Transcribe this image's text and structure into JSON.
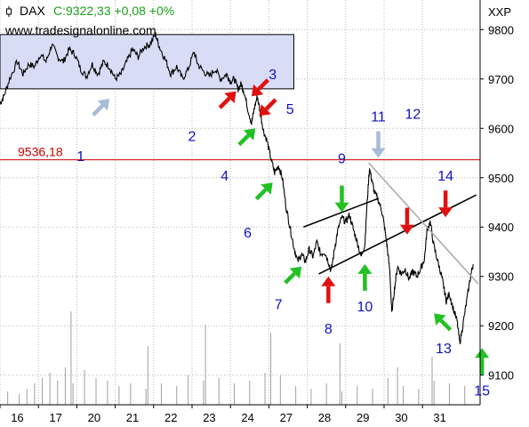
{
  "header": {
    "symbol": "DAX",
    "quote": "C:9322,33 +0,08 +0%",
    "watermark": "www.tradesignalonline.com",
    "currency": "XXP"
  },
  "colors": {
    "candle": "#000000",
    "box_fill": "#d9dcf5",
    "box_stroke": "#000000",
    "hline": "#cc0000",
    "grid": "#b8b8b8",
    "volume": "#a0a0a0",
    "trend_black": "#000000",
    "trend_gray": "#a8a8a8",
    "arrow_green": "#22c022",
    "arrow_red": "#e01010",
    "arrow_gray": "#a8bcd8",
    "label_blue": "#1010c0"
  },
  "chart_data": {
    "type": "line",
    "ylim": [
      9040,
      9860
    ],
    "yticks": [
      "9800",
      "9700",
      "9600",
      "9500",
      "9400",
      "9300",
      "9200",
      "9100"
    ],
    "ytick_values": [
      9800,
      9700,
      9600,
      9500,
      9400,
      9300,
      9200,
      9100
    ],
    "xticks": [
      "16",
      "17",
      "20",
      "21",
      "22",
      "23",
      "24",
      "27",
      "28",
      "29",
      "30",
      "31"
    ],
    "xtick_positions": [
      0.45,
      1.45,
      2.45,
      3.45,
      4.45,
      5.45,
      6.45,
      7.45,
      8.45,
      9.45,
      10.45,
      11.45
    ],
    "xlim": [
      0,
      12.5
    ],
    "horizontal_line": {
      "value": 9536.18,
      "label": "9536,18"
    },
    "consolidation_box": {
      "x0": 0,
      "x1": 7.65,
      "y0": 9680,
      "y1": 9790
    },
    "price_path": [
      [
        0,
        9650
      ],
      [
        0.1,
        9665
      ],
      [
        0.25,
        9700
      ],
      [
        0.45,
        9735
      ],
      [
        0.6,
        9710
      ],
      [
        0.75,
        9730
      ],
      [
        0.9,
        9725
      ],
      [
        1.05,
        9750
      ],
      [
        1.2,
        9735
      ],
      [
        1.35,
        9770
      ],
      [
        1.5,
        9745
      ],
      [
        1.65,
        9735
      ],
      [
        1.8,
        9760
      ],
      [
        1.95,
        9750
      ],
      [
        2.1,
        9720
      ],
      [
        2.25,
        9705
      ],
      [
        2.4,
        9730
      ],
      [
        2.55,
        9710
      ],
      [
        2.7,
        9735
      ],
      [
        2.85,
        9725
      ],
      [
        3.0,
        9700
      ],
      [
        3.15,
        9710
      ],
      [
        3.3,
        9735
      ],
      [
        3.45,
        9760
      ],
      [
        3.6,
        9745
      ],
      [
        3.75,
        9765
      ],
      [
        3.9,
        9770
      ],
      [
        4.05,
        9790
      ],
      [
        4.15,
        9765
      ],
      [
        4.3,
        9740
      ],
      [
        4.45,
        9710
      ],
      [
        4.6,
        9725
      ],
      [
        4.75,
        9700
      ],
      [
        4.9,
        9720
      ],
      [
        5.05,
        9755
      ],
      [
        5.15,
        9730
      ],
      [
        5.3,
        9715
      ],
      [
        5.45,
        9705
      ],
      [
        5.6,
        9720
      ],
      [
        5.75,
        9700
      ],
      [
        5.9,
        9710
      ],
      [
        6.0,
        9695
      ],
      [
        6.1,
        9700
      ],
      [
        6.2,
        9680
      ],
      [
        6.28,
        9690
      ],
      [
        6.35,
        9675
      ],
      [
        6.45,
        9640
      ],
      [
        6.55,
        9610
      ],
      [
        6.62,
        9640
      ],
      [
        6.7,
        9665
      ],
      [
        6.78,
        9630
      ],
      [
        6.86,
        9595
      ],
      [
        6.95,
        9575
      ],
      [
        7.05,
        9540
      ],
      [
        7.15,
        9510
      ],
      [
        7.25,
        9525
      ],
      [
        7.35,
        9500
      ],
      [
        7.45,
        9440
      ],
      [
        7.55,
        9400
      ],
      [
        7.65,
        9360
      ],
      [
        7.75,
        9330
      ],
      [
        7.85,
        9345
      ],
      [
        7.95,
        9330
      ],
      [
        8.05,
        9355
      ],
      [
        8.15,
        9340
      ],
      [
        8.25,
        9370
      ],
      [
        8.35,
        9345
      ],
      [
        8.45,
        9350
      ],
      [
        8.55,
        9330
      ],
      [
        8.62,
        9310
      ],
      [
        8.72,
        9360
      ],
      [
        8.8,
        9395
      ],
      [
        8.9,
        9420
      ],
      [
        9.0,
        9410
      ],
      [
        9.1,
        9425
      ],
      [
        9.2,
        9395
      ],
      [
        9.3,
        9370
      ],
      [
        9.4,
        9340
      ],
      [
        9.5,
        9365
      ],
      [
        9.55,
        9440
      ],
      [
        9.62,
        9520
      ],
      [
        9.68,
        9495
      ],
      [
        9.75,
        9470
      ],
      [
        9.85,
        9455
      ],
      [
        9.95,
        9430
      ],
      [
        10.02,
        9395
      ],
      [
        10.08,
        9360
      ],
      [
        10.15,
        9310
      ],
      [
        10.2,
        9225
      ],
      [
        10.27,
        9275
      ],
      [
        10.35,
        9320
      ],
      [
        10.45,
        9305
      ],
      [
        10.55,
        9315
      ],
      [
        10.65,
        9295
      ],
      [
        10.75,
        9310
      ],
      [
        10.85,
        9300
      ],
      [
        10.95,
        9315
      ],
      [
        11.05,
        9335
      ],
      [
        11.12,
        9395
      ],
      [
        11.2,
        9410
      ],
      [
        11.3,
        9360
      ],
      [
        11.4,
        9330
      ],
      [
        11.5,
        9300
      ],
      [
        11.55,
        9280
      ],
      [
        11.62,
        9250
      ],
      [
        11.7,
        9265
      ],
      [
        11.8,
        9235
      ],
      [
        11.9,
        9210
      ],
      [
        11.97,
        9165
      ],
      [
        12.05,
        9200
      ],
      [
        12.15,
        9250
      ],
      [
        12.25,
        9300
      ],
      [
        12.32,
        9325
      ]
    ],
    "trendlines": [
      {
        "color": "black",
        "from": [
          8.3,
          9305
        ],
        "to": [
          12.4,
          9465
        ]
      },
      {
        "color": "black",
        "from": [
          7.9,
          9400
        ],
        "to": [
          9.85,
          9458
        ]
      },
      {
        "color": "gray",
        "from": [
          9.6,
          9530
        ],
        "to": [
          12.45,
          9285
        ]
      }
    ],
    "volume": [
      [
        0.2,
        0.05
      ],
      [
        0.5,
        0.04
      ],
      [
        0.7,
        0.06
      ],
      [
        0.9,
        0.08
      ],
      [
        1.1,
        0.1
      ],
      [
        1.3,
        0.12
      ],
      [
        1.5,
        0.09
      ],
      [
        1.7,
        0.14
      ],
      [
        1.9,
        0.08
      ],
      [
        2.2,
        0.13
      ],
      [
        2.5,
        0.1
      ],
      [
        2.8,
        0.09
      ],
      [
        3.1,
        0.07
      ],
      [
        3.4,
        0.08
      ],
      [
        3.8,
        0.06
      ],
      [
        4.2,
        0.08
      ],
      [
        4.6,
        0.07
      ],
      [
        4.9,
        0.11
      ],
      [
        5.3,
        0.09
      ],
      [
        5.7,
        0.1
      ],
      [
        6.1,
        0.08
      ],
      [
        6.5,
        0.09
      ],
      [
        6.9,
        0.12
      ],
      [
        7.3,
        0.11
      ],
      [
        7.7,
        0.07
      ],
      [
        8.1,
        0.06
      ],
      [
        8.5,
        0.08
      ],
      [
        8.9,
        0.05
      ],
      [
        9.3,
        0.07
      ],
      [
        9.7,
        0.06
      ],
      [
        10.1,
        0.1
      ],
      [
        10.5,
        0.07
      ],
      [
        10.9,
        0.06
      ],
      [
        11.3,
        0.09
      ],
      [
        11.7,
        0.08
      ],
      [
        12.1,
        0.07
      ],
      [
        1.85,
        0.35
      ],
      [
        3.85,
        0.22
      ],
      [
        5.35,
        0.3
      ],
      [
        7.05,
        0.27
      ],
      [
        8.85,
        0.23
      ],
      [
        10.35,
        0.14
      ],
      [
        11.25,
        0.18
      ]
    ],
    "arrows": [
      {
        "label": "1",
        "color": "gray",
        "dir": "up-right",
        "tip": [
          2.85,
          9660
        ],
        "label_at": [
          2.1,
          9545
        ]
      },
      {
        "label": "2",
        "color": "red",
        "dir": "up-right",
        "tip": [
          6.15,
          9675
        ],
        "label_at": [
          5.0,
          9585
        ]
      },
      {
        "label": "3",
        "color": "red",
        "dir": "down-left",
        "tip": [
          6.55,
          9665
        ],
        "label_at": [
          7.1,
          9710
        ]
      },
      {
        "label": "4",
        "color": "green",
        "dir": "up-right",
        "tip": [
          6.65,
          9600
        ],
        "label_at": [
          5.85,
          9505
        ]
      },
      {
        "label": "5",
        "color": "red",
        "dir": "down-left",
        "tip": [
          6.75,
          9625
        ],
        "label_at": [
          7.55,
          9640
        ]
      },
      {
        "label": "6",
        "color": "green",
        "dir": "up-right",
        "tip": [
          7.1,
          9490
        ],
        "label_at": [
          6.45,
          9390
        ]
      },
      {
        "label": "7",
        "color": "green",
        "dir": "up-right",
        "tip": [
          7.85,
          9320
        ],
        "label_at": [
          7.25,
          9245
        ]
      },
      {
        "label": "8",
        "color": "red",
        "dir": "up",
        "tip": [
          8.55,
          9300
        ],
        "label_at": [
          8.55,
          9195
        ]
      },
      {
        "label": "9",
        "color": "green",
        "dir": "down",
        "tip": [
          8.9,
          9430
        ],
        "label_at": [
          8.9,
          9540
        ]
      },
      {
        "label": "10",
        "color": "green",
        "dir": "up",
        "tip": [
          9.5,
          9325
        ],
        "label_at": [
          9.5,
          9240
        ]
      },
      {
        "label": "11",
        "color": "gray",
        "dir": "down",
        "tip": [
          9.85,
          9540
        ],
        "label_at": [
          9.85,
          9625
        ]
      },
      {
        "label": "12",
        "color": "red",
        "dir": "down",
        "tip": [
          10.6,
          9385
        ],
        "label_at": [
          10.75,
          9630
        ]
      },
      {
        "label": "13",
        "color": "green",
        "dir": "up-left",
        "tip": [
          11.3,
          9225
        ],
        "label_at": [
          11.55,
          9155
        ]
      },
      {
        "label": "14",
        "color": "red",
        "dir": "down",
        "tip": [
          11.6,
          9420
        ],
        "label_at": [
          11.6,
          9505
        ]
      },
      {
        "label": "15",
        "color": "green",
        "dir": "up",
        "tip": [
          12.55,
          9155
        ],
        "label_at": [
          12.55,
          9070
        ]
      }
    ]
  }
}
